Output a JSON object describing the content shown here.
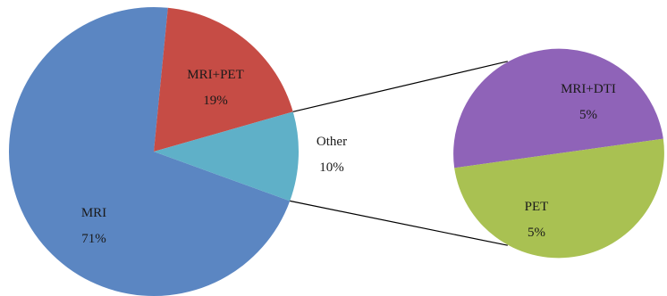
{
  "chart_data": {
    "type": "pie",
    "variant": "pie-of-pie",
    "main_slices": [
      {
        "label": "MRI",
        "value": 71,
        "display": "71%",
        "color": "#5b86c2"
      },
      {
        "label": "MRI+PET",
        "value": 19,
        "display": "19%",
        "color": "#c64c45"
      },
      {
        "label": "Other",
        "value": 10,
        "display": "10%",
        "color": "#5fb0c8"
      }
    ],
    "breakout_of": "Other",
    "sub_slices": [
      {
        "label": "MRI+DTI",
        "value": 5,
        "display": "5%",
        "color": "#8f63b8"
      },
      {
        "label": "PET",
        "value": 5,
        "display": "5%",
        "color": "#a9c152"
      }
    ],
    "connector_color": "#000000"
  }
}
